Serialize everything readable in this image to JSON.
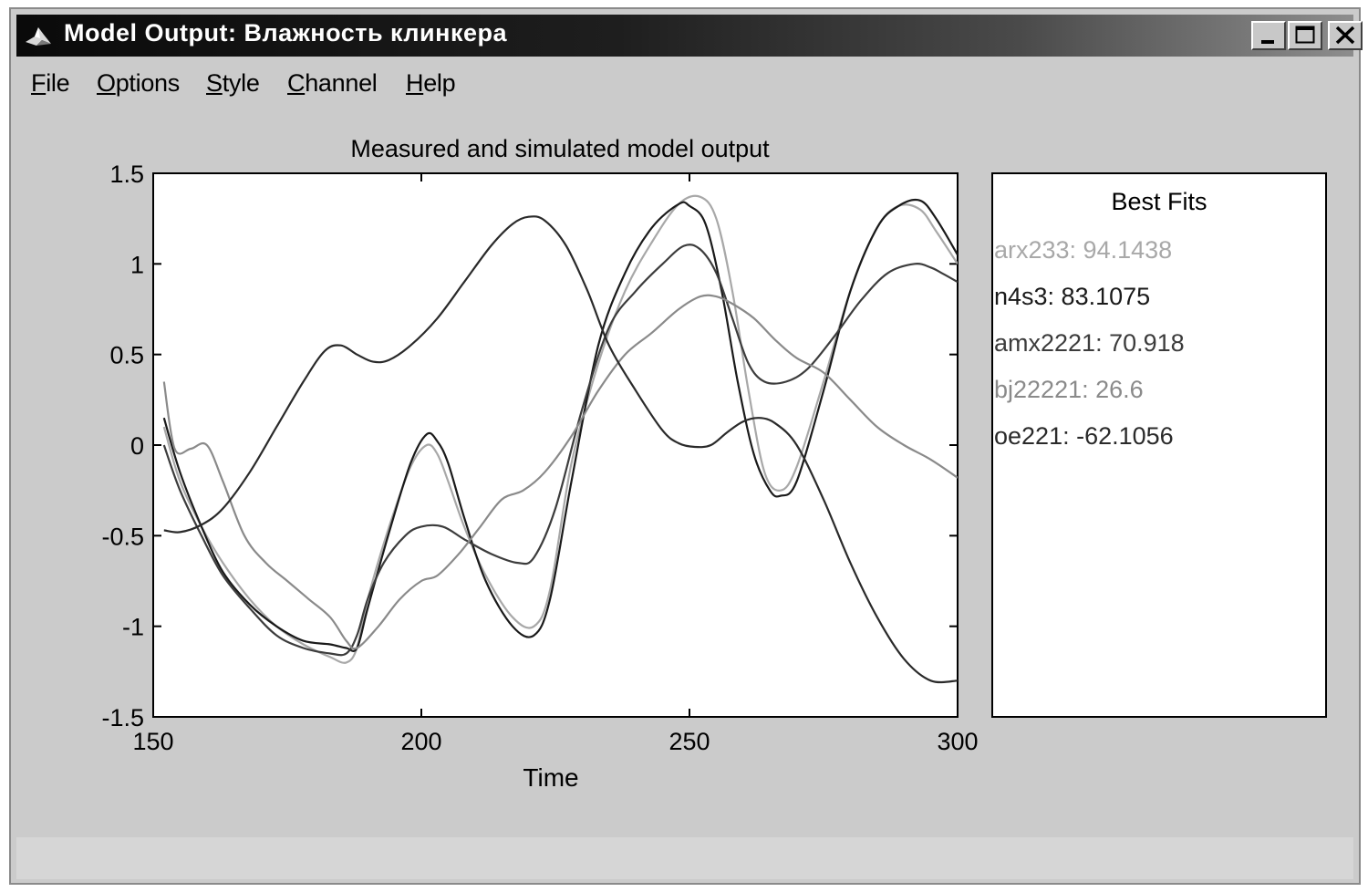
{
  "window": {
    "title": "Model Output: Влажность клинкера"
  },
  "menu": [
    {
      "mnemonic": "F",
      "rest": "ile"
    },
    {
      "mnemonic": "O",
      "rest": "ptions"
    },
    {
      "mnemonic": "S",
      "rest": "tyle"
    },
    {
      "mnemonic": "C",
      "rest": "hannel"
    },
    {
      "mnemonic": "H",
      "rest": "elp"
    }
  ],
  "chart_data": {
    "type": "line",
    "title": "Measured and simulated model output",
    "xlabel": "Time",
    "ylabel": "",
    "xlim": [
      150,
      300
    ],
    "ylim": [
      -1.5,
      1.5
    ],
    "xticks": [
      150,
      200,
      250,
      300
    ],
    "yticks": [
      1.5,
      1,
      0.5,
      0,
      -0.5,
      -1,
      -1.5
    ],
    "ytick_labels": [
      "1.5",
      "1",
      "0.5",
      "0",
      "-0.5",
      "-1",
      "-1.5"
    ],
    "grid": false,
    "legend": {
      "title": "Best Fits",
      "placement": "right-panel"
    },
    "series": [
      {
        "name": "arx233: 94.1438",
        "color": "#a8a8a8",
        "x": [
          152,
          155,
          159,
          163,
          168,
          173,
          178,
          183,
          186,
          188,
          190,
          194,
          198,
          201,
          203,
          205,
          208,
          212,
          217,
          221,
          224,
          228,
          233,
          238,
          243,
          248,
          252,
          255,
          258,
          261,
          264,
          267,
          270,
          275,
          280,
          285,
          289,
          293,
          296,
          300
        ],
        "y": [
          0.1,
          -0.2,
          -0.45,
          -0.65,
          -0.85,
          -1.0,
          -1.1,
          -1.17,
          -1.2,
          -1.12,
          -0.85,
          -0.45,
          -0.12,
          0.0,
          -0.05,
          -0.2,
          -0.45,
          -0.72,
          -0.95,
          -1.0,
          -0.8,
          -0.1,
          0.45,
          0.85,
          1.12,
          1.33,
          1.37,
          1.25,
          0.85,
          0.3,
          -0.15,
          -0.25,
          -0.12,
          0.35,
          0.85,
          1.2,
          1.32,
          1.3,
          1.18,
          1.0
        ]
      },
      {
        "name": "n4s3: 83.1075",
        "color": "#1a1a1a",
        "x": [
          152,
          155,
          159,
          163,
          168,
          173,
          178,
          183,
          186,
          188,
          190,
          194,
          198,
          201,
          203,
          205,
          208,
          212,
          217,
          221,
          224,
          228,
          233,
          238,
          243,
          248,
          250,
          253,
          256,
          259,
          262,
          265,
          267,
          270,
          275,
          280,
          285,
          289,
          293,
          296,
          300
        ],
        "y": [
          0.15,
          -0.15,
          -0.45,
          -0.7,
          -0.88,
          -1.0,
          -1.08,
          -1.1,
          -1.12,
          -1.12,
          -0.9,
          -0.48,
          -0.1,
          0.06,
          0.02,
          -0.1,
          -0.4,
          -0.75,
          -1.0,
          -1.05,
          -0.85,
          -0.2,
          0.55,
          0.95,
          1.2,
          1.33,
          1.32,
          1.22,
          0.85,
          0.35,
          -0.05,
          -0.25,
          -0.28,
          -0.2,
          0.3,
          0.85,
          1.2,
          1.32,
          1.35,
          1.25,
          1.05
        ]
      },
      {
        "name": "amx2221: 70.918",
        "color": "#3c3c3c",
        "x": [
          152,
          155,
          159,
          163,
          168,
          173,
          178,
          183,
          186,
          188,
          190,
          193,
          197,
          200,
          204,
          208,
          213,
          218,
          221,
          225,
          230,
          235,
          240,
          245,
          249,
          252,
          255,
          258,
          261,
          264,
          268,
          272,
          277,
          282,
          287,
          292,
          295,
          297,
          300
        ],
        "y": [
          0.0,
          -0.25,
          -0.5,
          -0.72,
          -0.9,
          -1.05,
          -1.12,
          -1.15,
          -1.15,
          -1.05,
          -0.85,
          -0.65,
          -0.5,
          -0.45,
          -0.45,
          -0.52,
          -0.6,
          -0.65,
          -0.62,
          -0.35,
          0.2,
          0.65,
          0.85,
          1.0,
          1.1,
          1.08,
          0.95,
          0.7,
          0.45,
          0.35,
          0.35,
          0.42,
          0.6,
          0.8,
          0.95,
          1.0,
          0.98,
          0.95,
          0.9
        ]
      },
      {
        "name": "bj22221: 26.6",
        "color": "#8a8a8a",
        "x": [
          152,
          154,
          157,
          160,
          163,
          167,
          171,
          175,
          179,
          183,
          186,
          188,
          192,
          196,
          200,
          203,
          207,
          211,
          215,
          219,
          223,
          228,
          233,
          238,
          243,
          248,
          252,
          255,
          258,
          262,
          266,
          270,
          275,
          280,
          285,
          290,
          295,
          300
        ],
        "y": [
          0.35,
          -0.02,
          -0.02,
          0.0,
          -0.2,
          -0.5,
          -0.65,
          -0.75,
          -0.85,
          -0.95,
          -1.08,
          -1.12,
          -1.0,
          -0.85,
          -0.75,
          -0.72,
          -0.6,
          -0.45,
          -0.3,
          -0.25,
          -0.15,
          0.05,
          0.3,
          0.5,
          0.62,
          0.75,
          0.82,
          0.82,
          0.78,
          0.7,
          0.58,
          0.48,
          0.4,
          0.25,
          0.1,
          0.0,
          -0.08,
          -0.18
        ]
      },
      {
        "name": "oe221: -62.1056",
        "color": "#2a2a2a",
        "x": [
          152,
          155,
          159,
          163,
          168,
          173,
          178,
          182,
          185,
          188,
          191,
          194,
          198,
          203,
          208,
          213,
          217,
          220,
          223,
          227,
          231,
          235,
          240,
          245,
          248,
          251,
          254,
          257,
          260,
          263,
          266,
          270,
          275,
          280,
          285,
          290,
          295,
          300
        ],
        "y": [
          -0.47,
          -0.48,
          -0.44,
          -0.35,
          -0.15,
          0.1,
          0.35,
          0.52,
          0.55,
          0.5,
          0.46,
          0.47,
          0.55,
          0.7,
          0.9,
          1.1,
          1.22,
          1.26,
          1.24,
          1.1,
          0.85,
          0.55,
          0.3,
          0.08,
          0.01,
          -0.01,
          0.0,
          0.07,
          0.13,
          0.15,
          0.12,
          0.0,
          -0.3,
          -0.65,
          -0.95,
          -1.18,
          -1.3,
          -1.3
        ]
      }
    ]
  }
}
